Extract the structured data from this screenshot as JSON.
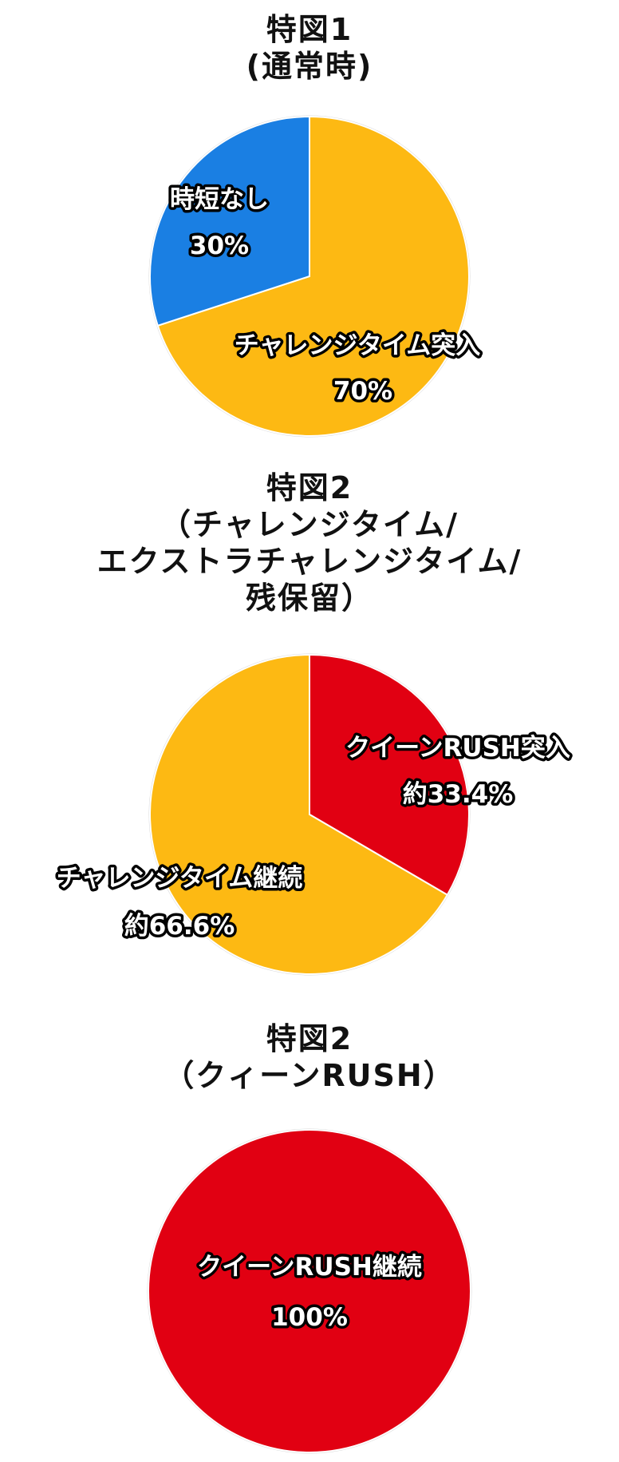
{
  "colors": {
    "yellow": "#FDB913",
    "blue": "#1A7FE3",
    "red": "#E10012"
  },
  "chart_data": [
    {
      "type": "pie",
      "title": [
        "特図1",
        "(通常時)"
      ],
      "slices": [
        {
          "label": "チャレンジタイム突入",
          "value_text": "70%",
          "value": 70,
          "color": "#FDB913"
        },
        {
          "label": "時短なし",
          "value_text": "30%",
          "value": 30,
          "color": "#1A7FE3"
        }
      ]
    },
    {
      "type": "pie",
      "title": [
        "特図2",
        "（チャレンジタイム/",
        "エクストラチャレンジタイム/",
        "残保留）"
      ],
      "slices": [
        {
          "label": "クイーンRUSH突入",
          "value_text": "約33.4%",
          "value": 33.4,
          "color": "#E10012"
        },
        {
          "label": "チャレンジタイム継続",
          "value_text": "約66.6%",
          "value": 66.6,
          "color": "#FDB913"
        }
      ]
    },
    {
      "type": "pie",
      "title": [
        "特図2",
        "（クィーンRUSH）"
      ],
      "slices": [
        {
          "label": "クイーンRUSH継続",
          "value_text": "100%",
          "value": 100,
          "color": "#E10012"
        }
      ]
    }
  ]
}
